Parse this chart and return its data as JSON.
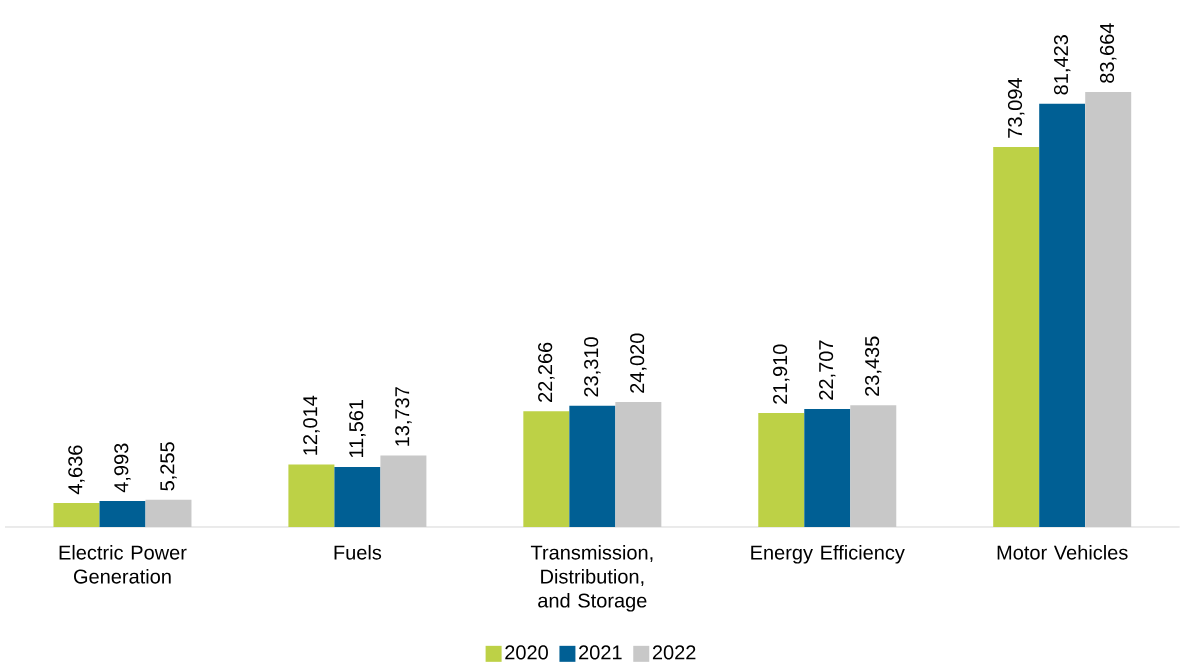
{
  "chart_data": {
    "type": "bar",
    "categories": [
      "Electric Power Generation",
      "Fuels",
      "Transmission, Distribution, and Storage",
      "Energy Efficiency",
      "Motor Vehicles"
    ],
    "series": [
      {
        "name": "2020",
        "color": "#bdd146",
        "values": [
          4636,
          12014,
          22266,
          21910,
          73094
        ],
        "value_labels": [
          "4,636",
          "12,014",
          "22,266",
          "21,910",
          "73,094"
        ]
      },
      {
        "name": "2021",
        "color": "#005f94",
        "values": [
          4993,
          11561,
          23310,
          22707,
          81423
        ],
        "value_labels": [
          "4,993",
          "11,561",
          "23,310",
          "22,707",
          "81,423"
        ]
      },
      {
        "name": "2022",
        "color": "#c8c8c8",
        "values": [
          5255,
          13737,
          24020,
          23435,
          83664
        ],
        "value_labels": [
          "5,255",
          "13,737",
          "24,020",
          "23,435",
          "83,664"
        ]
      }
    ],
    "legend": "bottom"
  }
}
